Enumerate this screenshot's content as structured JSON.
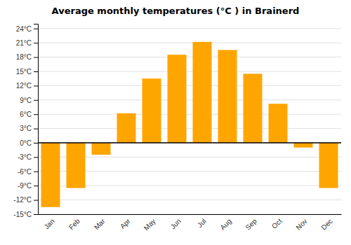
{
  "chart_data": {
    "type": "bar",
    "title": "Average monthly temperatures (°C ) in Brainerd",
    "categories": [
      "Jan",
      "Feb",
      "Mar",
      "Apr",
      "May",
      "Jun",
      "Jul",
      "Aug",
      "Sep",
      "Oct",
      "Nov",
      "Dec"
    ],
    "values": [
      -13.5,
      -9.5,
      -2.5,
      6.2,
      13.5,
      18.5,
      21.2,
      19.5,
      14.5,
      8.2,
      -1.0,
      -9.5
    ],
    "color": "#FFA500",
    "ylim": [
      -15,
      25
    ],
    "yticks": [
      {
        "value": -15,
        "label": "-15°C"
      },
      {
        "value": -12,
        "label": "-12°C"
      },
      {
        "value": -9,
        "label": "-9°C"
      },
      {
        "value": -6,
        "label": "-6°C"
      },
      {
        "value": -3,
        "label": "-3°C"
      },
      {
        "value": 0,
        "label": "0°C"
      },
      {
        "value": 3,
        "label": "3°C"
      },
      {
        "value": 6,
        "label": "6°C"
      },
      {
        "value": 9,
        "label": "9°C"
      },
      {
        "value": 12,
        "label": "12°C"
      },
      {
        "value": 15,
        "label": "15°C"
      },
      {
        "value": 18,
        "label": "18°C"
      },
      {
        "value": 21,
        "label": "21°C"
      },
      {
        "value": 24,
        "label": "24°C"
      }
    ],
    "grid": true
  }
}
